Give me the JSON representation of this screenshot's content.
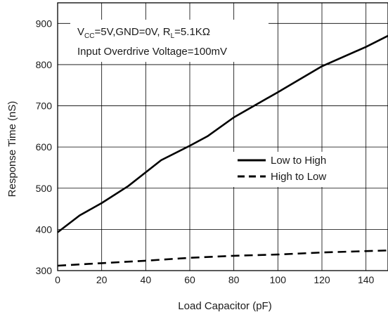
{
  "chart_data": {
    "type": "line",
    "xlabel": "Load Capacitor (pF)",
    "ylabel": "Response Time (nS)",
    "xlim": [
      0,
      150
    ],
    "ylim": [
      300,
      950
    ],
    "xticks": [
      0,
      20,
      40,
      60,
      80,
      100,
      120,
      140
    ],
    "yticks": [
      300,
      400,
      500,
      600,
      700,
      800,
      900
    ],
    "xtick_labels": [
      "0",
      "20",
      "40",
      "60",
      "80",
      "100",
      "120",
      "140"
    ],
    "ytick_labels": [
      "300",
      "400",
      "500",
      "600",
      "700",
      "800",
      "900"
    ],
    "grid": true,
    "legend_position": "center-right",
    "annotations": {
      "vcc_v": "V",
      "vcc_sub": "CC",
      "vcc_rest": "=5V,GND=0V, R",
      "rl_sub": "L",
      "rl_rest": "=5.1KΩ",
      "line2": "Input Overdrive Voltage=100mV"
    },
    "series": [
      {
        "name": "Low to High",
        "style": "solid",
        "x": [
          0,
          10,
          20,
          32,
          47,
          60,
          68,
          80,
          100,
          120,
          140,
          150
        ],
        "y": [
          393,
          434,
          464,
          505,
          568,
          603,
          626,
          672,
          733,
          796,
          843,
          870
        ]
      },
      {
        "name": "High to Low",
        "style": "dashed",
        "x": [
          0,
          20,
          40,
          60,
          80,
          100,
          120,
          150
        ],
        "y": [
          312,
          318,
          324,
          331,
          336,
          339,
          344,
          349
        ]
      }
    ]
  }
}
